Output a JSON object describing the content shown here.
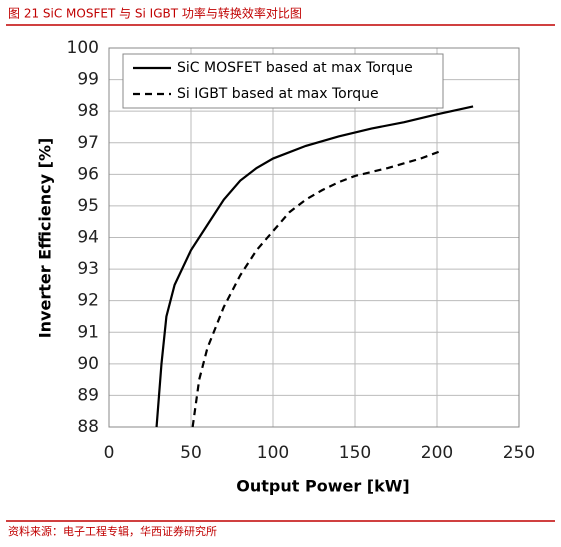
{
  "header": {
    "title": "图 21  SiC MOSFET 与 Si IGBT 功率与转换效率对比图"
  },
  "chart_data": {
    "type": "line",
    "xlabel": "Output Power [kW]",
    "ylabel": "Inverter Efficiency [%]",
    "xlim": [
      0,
      250
    ],
    "xticks": [
      0,
      50,
      100,
      150,
      200,
      250
    ],
    "ylim": [
      88,
      100
    ],
    "yticks": [
      88,
      89,
      90,
      91,
      92,
      93,
      94,
      95,
      96,
      97,
      98,
      99,
      100
    ],
    "grid": true,
    "legend": "upper left",
    "series": [
      {
        "name": "SiC MOSFET based at max Torque",
        "color": "#000000",
        "dash": false,
        "x": [
          29,
          32,
          35,
          40,
          50,
          60,
          70,
          80,
          90,
          100,
          120,
          140,
          160,
          180,
          200,
          222
        ],
        "values": [
          88,
          90,
          91.5,
          92.5,
          93.6,
          94.4,
          95.2,
          95.8,
          96.2,
          96.5,
          96.9,
          97.2,
          97.45,
          97.65,
          97.9,
          98.15
        ]
      },
      {
        "name": "Si IGBT based at max Torque",
        "color": "#000000",
        "dash": true,
        "x": [
          51,
          55,
          60,
          70,
          80,
          90,
          100,
          110,
          120,
          130,
          140,
          150,
          170,
          190,
          203
        ],
        "values": [
          88,
          89.5,
          90.5,
          91.8,
          92.8,
          93.6,
          94.2,
          94.8,
          95.2,
          95.5,
          95.75,
          95.95,
          96.2,
          96.5,
          96.75
        ]
      }
    ]
  },
  "footer": {
    "source": "资料来源：电子工程专辑，华西证券研究所"
  }
}
